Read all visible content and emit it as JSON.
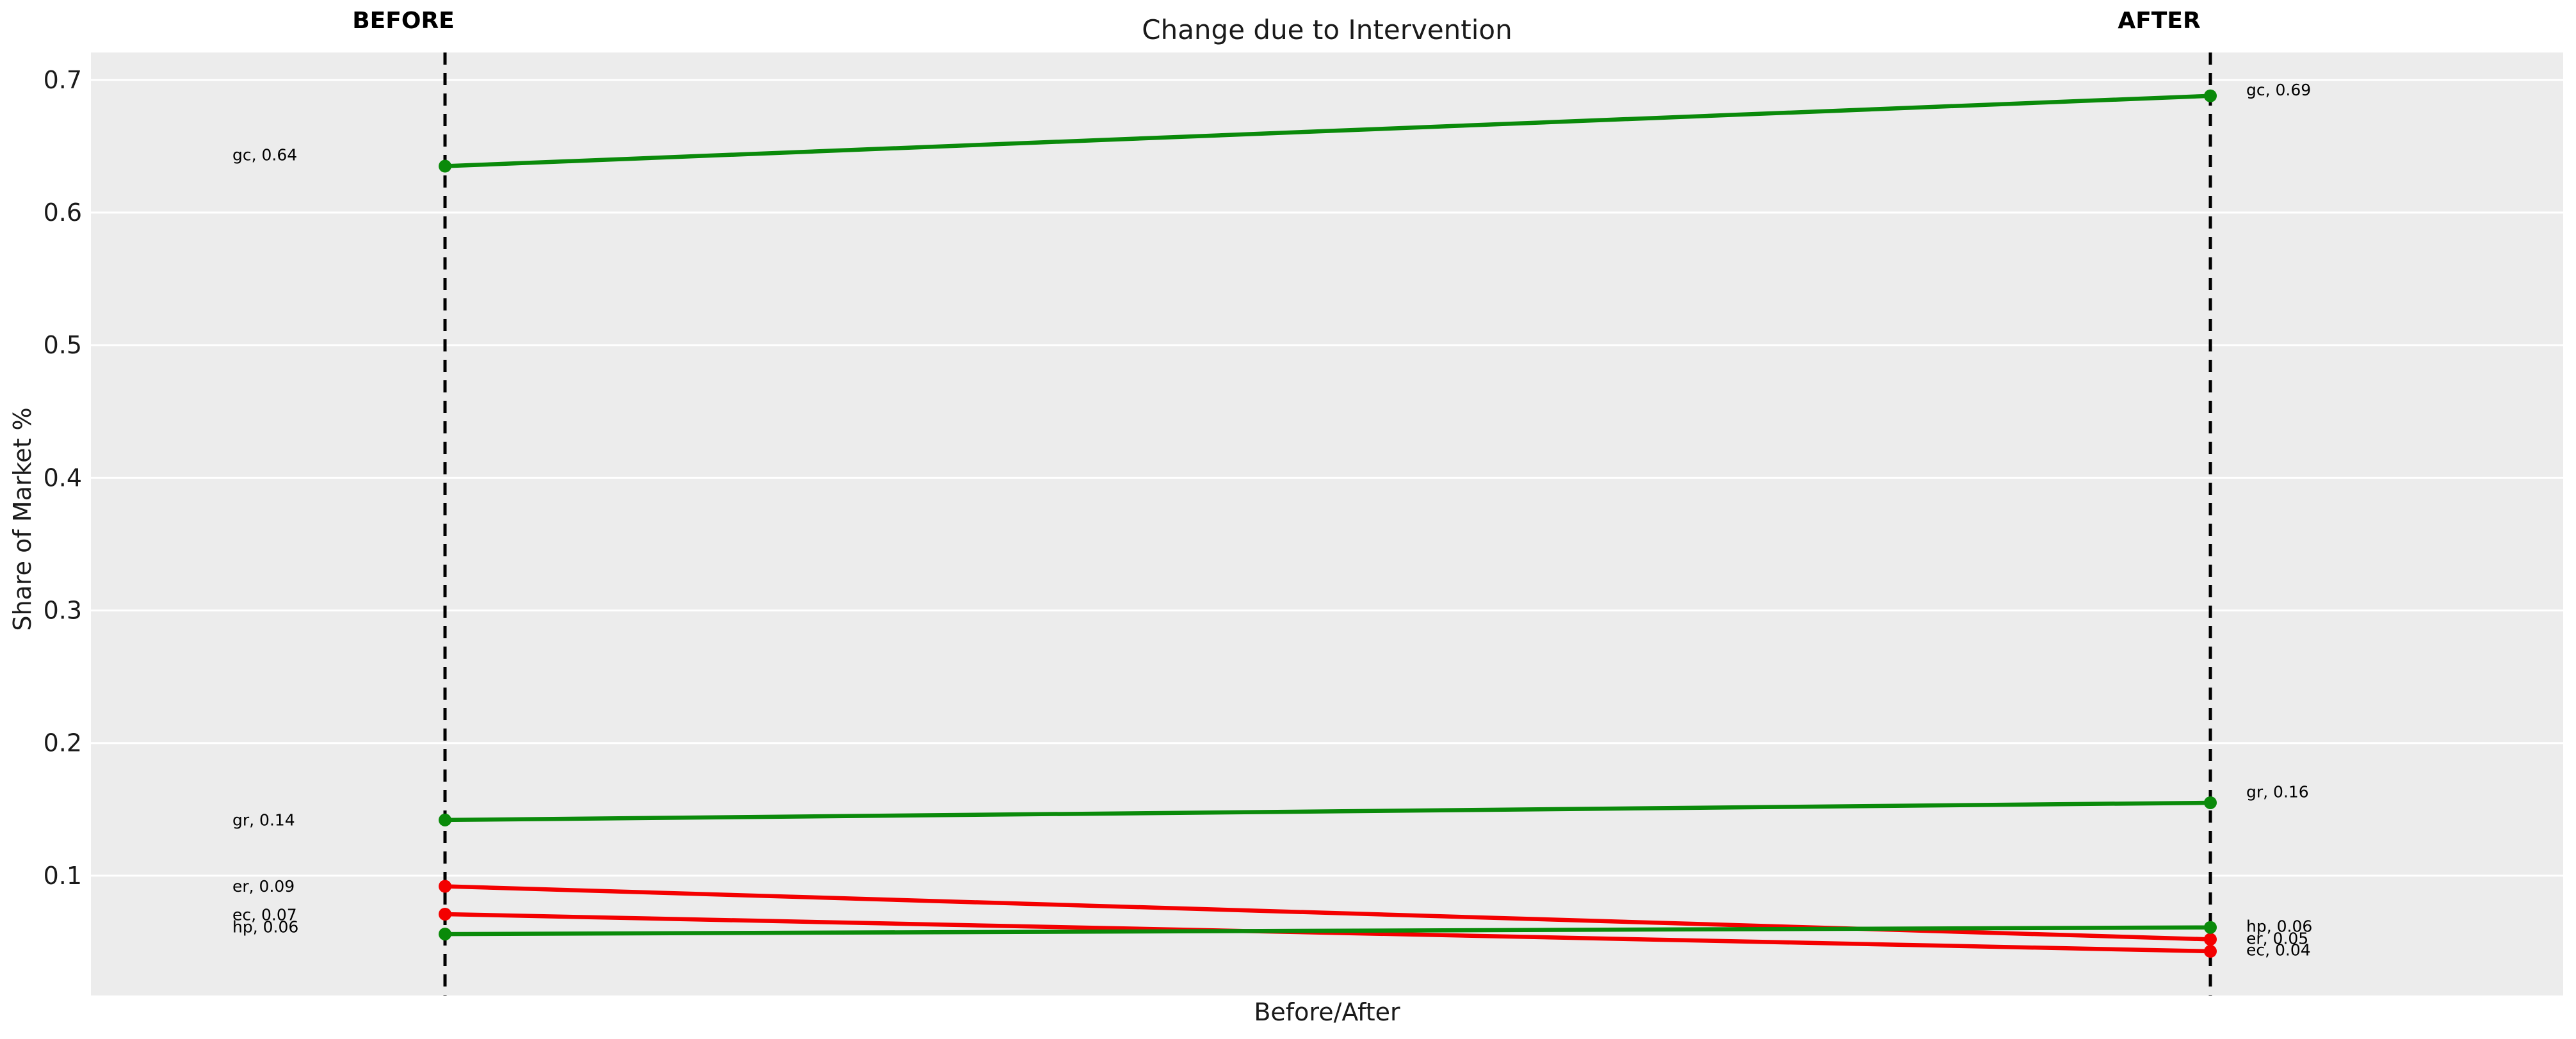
{
  "figure": {
    "title": "Change due to Intervention",
    "xlabel": "Before/After",
    "ylabel": "Share of Market %",
    "column_titles": {
      "before": "BEFORE",
      "after": "AFTER"
    }
  },
  "colors": {
    "increase": "#0a8a0a",
    "decrease": "#f40000",
    "plot_background": "#ececec",
    "gridline": "#ffffff",
    "dashed_line": "#000000",
    "text": "#1a1a1a"
  },
  "chart_data": {
    "type": "line",
    "subtype": "slope-before-after",
    "title": "Change due to Intervention",
    "xlabel": "Before/After",
    "ylabel": "Share of Market %",
    "categories": [
      "BEFORE",
      "AFTER"
    ],
    "y_ticks": [
      0.7,
      0.6,
      0.5,
      0.4,
      0.3,
      0.2,
      0.1
    ],
    "ylim": [
      0.0097,
      0.7207
    ],
    "grid": "horizontal-white-on-gray",
    "legend": "none",
    "series": [
      {
        "id": "gc",
        "direction": "increase",
        "before": 0.635,
        "after": 0.688,
        "label_before": "gc, 0.64",
        "label_after": "gc, 0.69",
        "label_before_y": 0.6435,
        "label_after_y": 0.6925
      },
      {
        "id": "gr",
        "direction": "increase",
        "before": 0.142,
        "after": 0.155,
        "label_before": "gr, 0.14",
        "label_after": "gr, 0.16",
        "label_before_y": 0.142,
        "label_after_y": 0.1632
      },
      {
        "id": "er",
        "direction": "decrease",
        "before": 0.092,
        "after": 0.052,
        "label_before": "er, 0.09",
        "label_after": "er, 0.05",
        "label_before_y": 0.092,
        "label_after_y": 0.0527
      },
      {
        "id": "ec",
        "direction": "decrease",
        "before": 0.071,
        "after": 0.043,
        "label_before": "ec, 0.07",
        "label_after": "ec, 0.04",
        "label_before_y": 0.0706,
        "label_after_y": 0.044
      },
      {
        "id": "hp",
        "direction": "increase",
        "before": 0.056,
        "after": 0.061,
        "label_before": "hp, 0.06",
        "label_after": "hp, 0.06",
        "label_before_y": 0.0614,
        "label_after_y": 0.0619
      }
    ]
  }
}
